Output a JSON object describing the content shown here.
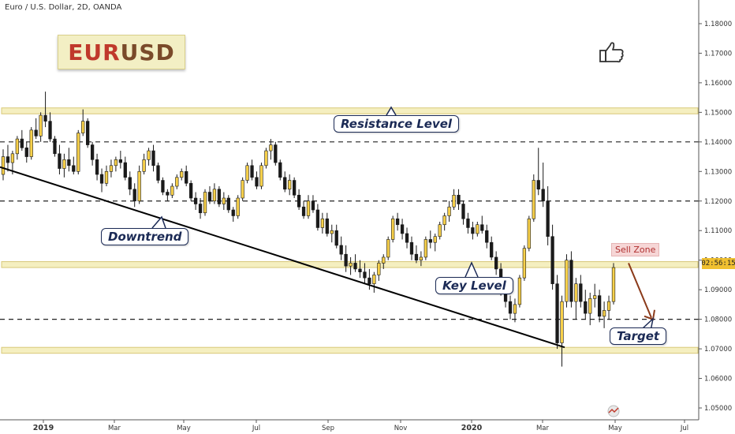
{
  "header": {
    "title": "Euro / U.S. Dollar, 2D, OANDA"
  },
  "symbol": {
    "part1": "EUR",
    "part2": "USD"
  },
  "labels": {
    "resistance": "Resistance Level",
    "downtrend": "Downtrend",
    "key_level": "Key Level",
    "target": "Target",
    "sell_zone": "Sell Zone",
    "price_tag": "02:56:15"
  },
  "icons": {
    "thumb": "thumbs-up-icon",
    "watermark": "tradingview-logo-icon"
  },
  "colors": {
    "up_candle": "#f7d04a",
    "down_candle": "#1a1a1a",
    "zone_fill": "#f5efc0",
    "zone_border": "#d8c878",
    "trendline": "#000000",
    "arrow": "#8b3a1a",
    "label_navy": "#1b2a55"
  },
  "chart_data": {
    "type": "candlestick",
    "y_axis": {
      "ticks": [
        "1.18000",
        "1.17000",
        "1.16000",
        "1.15000",
        "1.14000",
        "1.13000",
        "1.12000",
        "1.11000",
        "1.10000",
        "1.09000",
        "1.08000",
        "1.07000",
        "1.06000",
        "1.05000"
      ],
      "ylim": [
        1.046,
        1.188
      ]
    },
    "x_axis": {
      "ticks": [
        "2019",
        "Mar",
        "May",
        "Jul",
        "Sep",
        "Nov",
        "2020",
        "Mar",
        "May",
        "Jul"
      ]
    },
    "zones": [
      {
        "name": "resistance",
        "low": 1.1495,
        "high": 1.1515
      },
      {
        "name": "key_level",
        "low": 1.0975,
        "high": 1.0995
      },
      {
        "name": "support",
        "low": 1.0685,
        "high": 1.0705
      }
    ],
    "dashed_levels": [
      1.14,
      1.12,
      1.08
    ],
    "trendline": {
      "from": [
        "2019-01-01",
        1.1315
      ],
      "to": [
        "2020-03-20",
        1.0705
      ]
    },
    "projection": {
      "from": [
        "2020-05-05",
        1.099
      ],
      "to": [
        "2020-05-25",
        1.0805
      ]
    },
    "candles": [
      [
        1.129,
        1.1375,
        1.127,
        1.135
      ],
      [
        1.135,
        1.139,
        1.13,
        1.133
      ],
      [
        1.133,
        1.137,
        1.129,
        1.136
      ],
      [
        1.136,
        1.142,
        1.134,
        1.141
      ],
      [
        1.141,
        1.144,
        1.137,
        1.138
      ],
      [
        1.138,
        1.14,
        1.133,
        1.135
      ],
      [
        1.135,
        1.145,
        1.134,
        1.144
      ],
      [
        1.144,
        1.148,
        1.141,
        1.142
      ],
      [
        1.142,
        1.15,
        1.14,
        1.149
      ],
      [
        1.149,
        1.157,
        1.145,
        1.147
      ],
      [
        1.147,
        1.15,
        1.14,
        1.141
      ],
      [
        1.141,
        1.142,
        1.135,
        1.136
      ],
      [
        1.136,
        1.139,
        1.129,
        1.131
      ],
      [
        1.131,
        1.136,
        1.128,
        1.134
      ],
      [
        1.134,
        1.138,
        1.13,
        1.132
      ],
      [
        1.132,
        1.135,
        1.129,
        1.13
      ],
      [
        1.13,
        1.144,
        1.129,
        1.143
      ],
      [
        1.143,
        1.151,
        1.142,
        1.147
      ],
      [
        1.147,
        1.148,
        1.138,
        1.139
      ],
      [
        1.139,
        1.14,
        1.132,
        1.134
      ],
      [
        1.134,
        1.136,
        1.127,
        1.129
      ],
      [
        1.129,
        1.131,
        1.123,
        1.126
      ],
      [
        1.126,
        1.132,
        1.125,
        1.13
      ],
      [
        1.13,
        1.134,
        1.128,
        1.132
      ],
      [
        1.132,
        1.135,
        1.13,
        1.134
      ],
      [
        1.134,
        1.137,
        1.131,
        1.133
      ],
      [
        1.133,
        1.135,
        1.127,
        1.128
      ],
      [
        1.128,
        1.13,
        1.122,
        1.124
      ],
      [
        1.124,
        1.126,
        1.118,
        1.12
      ],
      [
        1.12,
        1.132,
        1.119,
        1.13
      ],
      [
        1.13,
        1.136,
        1.129,
        1.134
      ],
      [
        1.134,
        1.138,
        1.132,
        1.137
      ],
      [
        1.137,
        1.139,
        1.13,
        1.132
      ],
      [
        1.132,
        1.133,
        1.126,
        1.127
      ],
      [
        1.127,
        1.128,
        1.122,
        1.123
      ],
      [
        1.123,
        1.124,
        1.12,
        1.122
      ],
      [
        1.122,
        1.126,
        1.121,
        1.125
      ],
      [
        1.125,
        1.129,
        1.124,
        1.128
      ],
      [
        1.128,
        1.131,
        1.127,
        1.13
      ],
      [
        1.13,
        1.132,
        1.125,
        1.126
      ],
      [
        1.126,
        1.127,
        1.12,
        1.121
      ],
      [
        1.121,
        1.123,
        1.117,
        1.119
      ],
      [
        1.119,
        1.121,
        1.114,
        1.116
      ],
      [
        1.116,
        1.124,
        1.115,
        1.123
      ],
      [
        1.123,
        1.125,
        1.119,
        1.12
      ],
      [
        1.12,
        1.126,
        1.119,
        1.124
      ],
      [
        1.124,
        1.125,
        1.118,
        1.119
      ],
      [
        1.119,
        1.123,
        1.117,
        1.121
      ],
      [
        1.121,
        1.122,
        1.116,
        1.117
      ],
      [
        1.117,
        1.118,
        1.113,
        1.115
      ],
      [
        1.115,
        1.122,
        1.114,
        1.121
      ],
      [
        1.121,
        1.128,
        1.12,
        1.127
      ],
      [
        1.127,
        1.133,
        1.126,
        1.132
      ],
      [
        1.132,
        1.134,
        1.127,
        1.128
      ],
      [
        1.128,
        1.13,
        1.124,
        1.125
      ],
      [
        1.125,
        1.133,
        1.124,
        1.132
      ],
      [
        1.132,
        1.138,
        1.131,
        1.137
      ],
      [
        1.137,
        1.141,
        1.134,
        1.139
      ],
      [
        1.139,
        1.14,
        1.132,
        1.133
      ],
      [
        1.133,
        1.134,
        1.127,
        1.128
      ],
      [
        1.128,
        1.13,
        1.123,
        1.124
      ],
      [
        1.124,
        1.129,
        1.122,
        1.127
      ],
      [
        1.127,
        1.128,
        1.121,
        1.122
      ],
      [
        1.122,
        1.124,
        1.117,
        1.118
      ],
      [
        1.118,
        1.12,
        1.114,
        1.115
      ],
      [
        1.115,
        1.122,
        1.114,
        1.12
      ],
      [
        1.12,
        1.122,
        1.116,
        1.117
      ],
      [
        1.117,
        1.119,
        1.11,
        1.111
      ],
      [
        1.111,
        1.116,
        1.109,
        1.114
      ],
      [
        1.114,
        1.116,
        1.108,
        1.109
      ],
      [
        1.109,
        1.112,
        1.106,
        1.11
      ],
      [
        1.11,
        1.112,
        1.104,
        1.105
      ],
      [
        1.105,
        1.108,
        1.1,
        1.102
      ],
      [
        1.102,
        1.105,
        1.096,
        1.098
      ],
      [
        1.098,
        1.101,
        1.095,
        1.099
      ],
      [
        1.099,
        1.102,
        1.096,
        1.097
      ],
      [
        1.097,
        1.1,
        1.094,
        1.096
      ],
      [
        1.096,
        1.099,
        1.092,
        1.094
      ],
      [
        1.094,
        1.097,
        1.09,
        1.092
      ],
      [
        1.092,
        1.096,
        1.089,
        1.095
      ],
      [
        1.095,
        1.1,
        1.093,
        1.099
      ],
      [
        1.099,
        1.102,
        1.097,
        1.101
      ],
      [
        1.101,
        1.108,
        1.1,
        1.107
      ],
      [
        1.107,
        1.115,
        1.106,
        1.114
      ],
      [
        1.114,
        1.116,
        1.11,
        1.112
      ],
      [
        1.112,
        1.114,
        1.107,
        1.109
      ],
      [
        1.109,
        1.111,
        1.104,
        1.106
      ],
      [
        1.106,
        1.108,
        1.1,
        1.102
      ],
      [
        1.102,
        1.105,
        1.099,
        1.1
      ],
      [
        1.1,
        1.103,
        1.098,
        1.101
      ],
      [
        1.101,
        1.108,
        1.1,
        1.107
      ],
      [
        1.107,
        1.11,
        1.104,
        1.106
      ],
      [
        1.106,
        1.109,
        1.103,
        1.108
      ],
      [
        1.108,
        1.113,
        1.107,
        1.112
      ],
      [
        1.112,
        1.116,
        1.11,
        1.115
      ],
      [
        1.115,
        1.12,
        1.113,
        1.118
      ],
      [
        1.118,
        1.124,
        1.117,
        1.122
      ],
      [
        1.122,
        1.124,
        1.117,
        1.119
      ],
      [
        1.119,
        1.12,
        1.112,
        1.114
      ],
      [
        1.114,
        1.116,
        1.109,
        1.111
      ],
      [
        1.111,
        1.113,
        1.107,
        1.109
      ],
      [
        1.109,
        1.113,
        1.108,
        1.112
      ],
      [
        1.112,
        1.115,
        1.109,
        1.11
      ],
      [
        1.11,
        1.112,
        1.104,
        1.106
      ],
      [
        1.106,
        1.108,
        1.1,
        1.101
      ],
      [
        1.101,
        1.103,
        1.095,
        1.097
      ],
      [
        1.097,
        1.099,
        1.088,
        1.089
      ],
      [
        1.089,
        1.092,
        1.084,
        1.086
      ],
      [
        1.086,
        1.088,
        1.08,
        1.082
      ],
      [
        1.082,
        1.087,
        1.079,
        1.085
      ],
      [
        1.085,
        1.095,
        1.084,
        1.094
      ],
      [
        1.094,
        1.105,
        1.093,
        1.104
      ],
      [
        1.104,
        1.115,
        1.103,
        1.114
      ],
      [
        1.114,
        1.129,
        1.113,
        1.127
      ],
      [
        1.127,
        1.138,
        1.122,
        1.124
      ],
      [
        1.124,
        1.133,
        1.118,
        1.12
      ],
      [
        1.12,
        1.125,
        1.105,
        1.108
      ],
      [
        1.108,
        1.112,
        1.09,
        1.092
      ],
      [
        1.092,
        1.095,
        1.07,
        1.072
      ],
      [
        1.072,
        1.088,
        1.064,
        1.086
      ],
      [
        1.086,
        1.102,
        1.084,
        1.1
      ],
      [
        1.1,
        1.103,
        1.084,
        1.086
      ],
      [
        1.086,
        1.094,
        1.08,
        1.092
      ],
      [
        1.092,
        1.095,
        1.084,
        1.086
      ],
      [
        1.086,
        1.09,
        1.08,
        1.082
      ],
      [
        1.082,
        1.089,
        1.078,
        1.087
      ],
      [
        1.087,
        1.092,
        1.084,
        1.088
      ],
      [
        1.088,
        1.09,
        1.079,
        1.081
      ],
      [
        1.081,
        1.086,
        1.077,
        1.083
      ],
      [
        1.083,
        1.088,
        1.08,
        1.086
      ],
      [
        1.086,
        1.099,
        1.085,
        1.0975
      ]
    ]
  }
}
